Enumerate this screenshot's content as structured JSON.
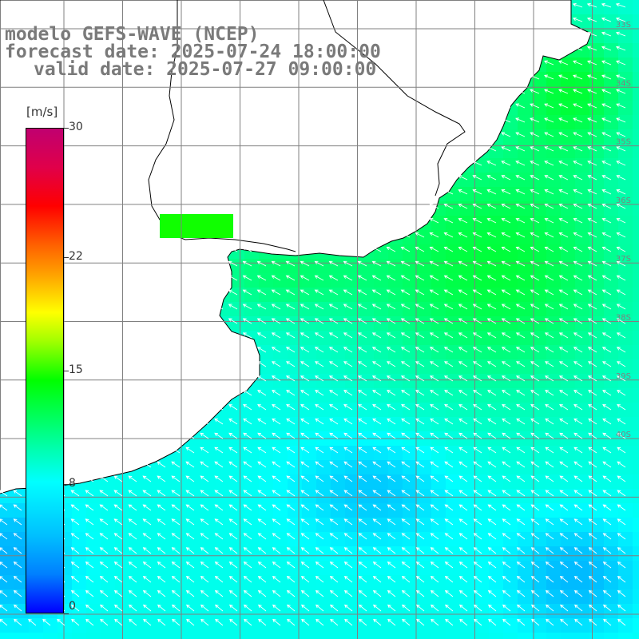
{
  "title": {
    "model": "modelo GEFS-WAVE (NCEP)",
    "forecast_date": "forecast date: 2025-07-24 18:00:00",
    "valid_date": "valid date: 2025-07-27 09:00:00"
  },
  "colorbar": {
    "unit": "[m/s]",
    "ticks": [
      "30",
      "22",
      "15",
      "8",
      "0"
    ],
    "tick_values": [
      30,
      22,
      15,
      8,
      0
    ],
    "range": [
      0,
      30
    ],
    "colors": [
      "#0000ff",
      "#0080ff",
      "#00c0ff",
      "#00ffff",
      "#00ffa0",
      "#00ff00",
      "#a0ff00",
      "#ffff00",
      "#ffa000",
      "#ff6000",
      "#ff0000",
      "#e0004a",
      "#c00070"
    ]
  },
  "map": {
    "field": "wind speed",
    "land_color": "#ffffff",
    "coast_color": "#000000",
    "grid_color": "#808080",
    "arrow_color": "#ffffff",
    "arrow_direction": "from south-east toward north-west",
    "lat_labels": [
      "33S",
      "34S",
      "35S",
      "36S",
      "37S",
      "38S",
      "39S",
      "40S"
    ]
  }
}
